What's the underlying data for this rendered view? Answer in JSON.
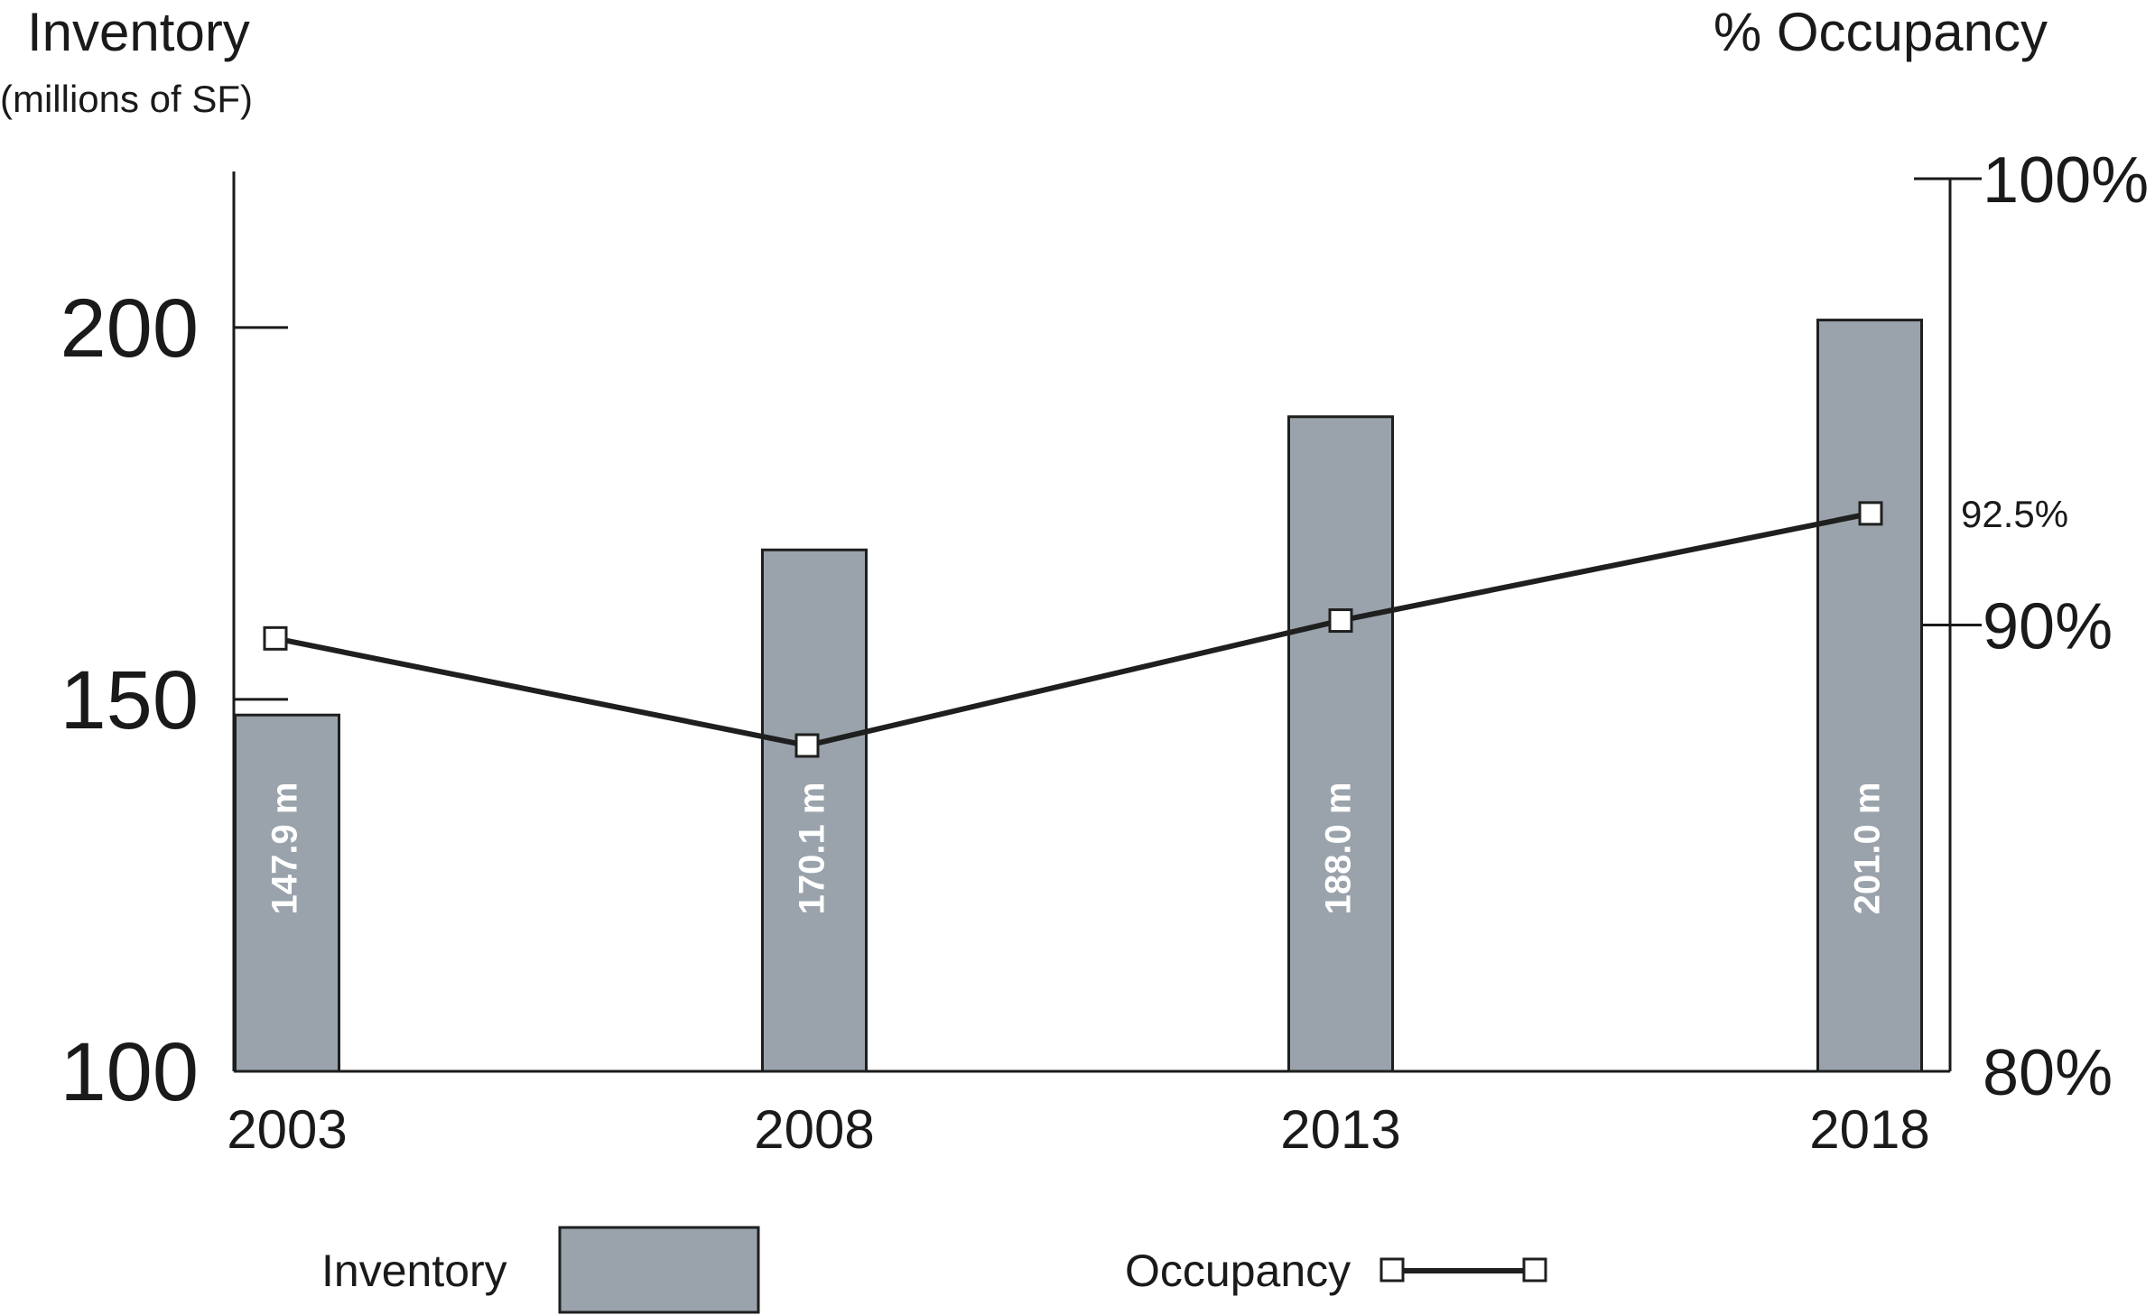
{
  "chart_data": {
    "type": "bar",
    "categories": [
      "2003",
      "2008",
      "2013",
      "2018"
    ],
    "series": [
      {
        "name": "Inventory",
        "type": "bar",
        "axis": "left",
        "values": [
          147.9,
          170.1,
          188.0,
          201.0
        ],
        "labels": [
          "147.9 m",
          "170.1 m",
          "188.0 m",
          "201.0 m"
        ],
        "color": "#9aa3ab"
      },
      {
        "name": "Occupancy",
        "type": "line",
        "axis": "right",
        "values": [
          89.7,
          87.3,
          90.1,
          92.5
        ],
        "color": "#1f1f1f"
      }
    ],
    "y_left": {
      "title": "Inventory",
      "subtitle": "(millions of SF)",
      "ylim": [
        100,
        220
      ],
      "ticks": [
        100,
        150,
        200
      ],
      "tick_labels": [
        "100",
        "150",
        "200"
      ]
    },
    "y_right": {
      "title": "% Occupancy",
      "ylim": [
        80,
        100
      ],
      "ticks": [
        80,
        90,
        100
      ],
      "tick_labels": [
        "80%",
        "90%",
        "100%"
      ]
    },
    "annotations": [
      {
        "series": "Occupancy",
        "category": "2018",
        "text": "92.5%"
      }
    ],
    "legend": {
      "placement": "bottom",
      "inventory_label": "Inventory",
      "occupancy_label": "Occupancy"
    },
    "grid": false,
    "colors": {
      "bar_fill": "#9aa3ab",
      "bar_stroke": "#1f1f1f",
      "line": "#1f1f1f",
      "marker_fill": "#ffffff",
      "axis": "#1a1a1a"
    }
  }
}
